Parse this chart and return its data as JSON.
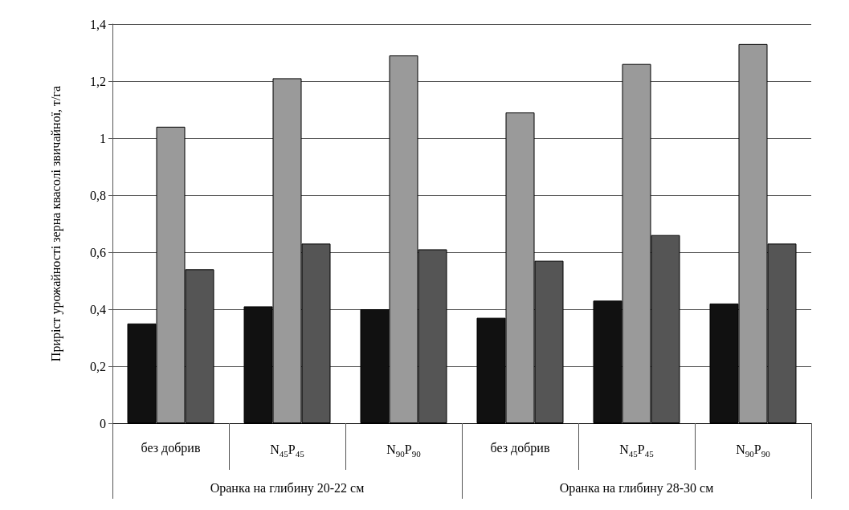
{
  "chart_data": {
    "type": "bar",
    "ylabel": "Приріст урожайності зерна квасолі звичайної, т/га",
    "categories": [
      "без добрив",
      "N$_{45}$P$_{45}$",
      "N$_{90}$P$_{90}$",
      "без добрив",
      "N$_{45}$P$_{45}$",
      "N$_{90}$P$_{90}$"
    ],
    "series": [
      {
        "color": "#111111",
        "values": [
          0.35,
          0.41,
          0.4,
          0.37,
          0.43,
          0.42
        ]
      },
      {
        "color": "#9a9a9a",
        "values": [
          1.04,
          1.21,
          1.29,
          1.09,
          1.26,
          1.33
        ]
      },
      {
        "color": "#555555",
        "values": [
          0.54,
          0.63,
          0.61,
          0.57,
          0.66,
          0.63
        ]
      }
    ],
    "annotations": [
      "Оранка на глибину 20-22 см",
      "Оранка на глибину 28-30 см"
    ],
    "ylim": [
      0,
      1.4
    ],
    "yticks": [
      0,
      {
        "value": 0.2,
        "label": "0,2"
      },
      {
        "value": 0.4,
        "label": "0,4"
      },
      {
        "value": 0.6,
        "label": "0,6"
      },
      {
        "value": 0.8,
        "label": "0,8"
      },
      1,
      {
        "value": 1.2,
        "label": "1,2"
      },
      {
        "value": 1.4,
        "label": "1,4"
      }
    ],
    "grid": true
  }
}
